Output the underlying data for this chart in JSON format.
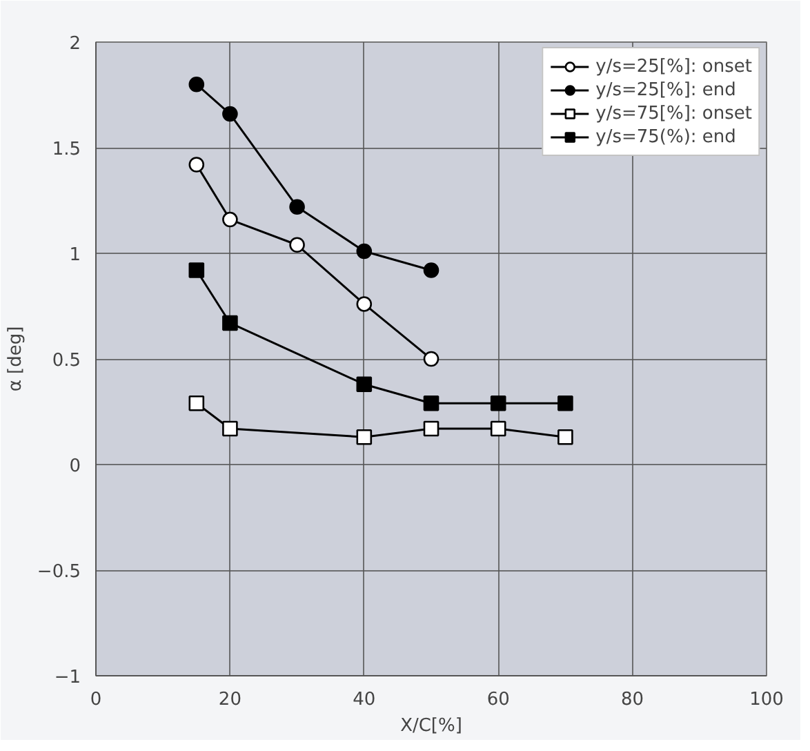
{
  "chart_data": {
    "type": "line",
    "xlabel": "X/C[%]",
    "ylabel": "α [deg]",
    "xlim": [
      0,
      100
    ],
    "xticks": [
      0,
      20,
      40,
      60,
      80,
      100
    ],
    "ylim": [
      -1,
      2
    ],
    "yticks": [
      -1,
      -0.5,
      0,
      0.5,
      1,
      1.5,
      2
    ],
    "grid": true,
    "legend": "top right",
    "line_style": "solid",
    "series": [
      {
        "name": "y/s=25[%]: onset",
        "color": "#000000",
        "colors": [
          "#ffffff",
          "#ffffff",
          "#ffffff",
          "#ffffff",
          "#ffffff"
        ],
        "marker": "circle",
        "x": [
          15,
          20,
          30,
          40,
          50
        ],
        "values": [
          1.42,
          1.16,
          1.04,
          0.76,
          0.5
        ]
      },
      {
        "name": "y/s=25[%]: end",
        "color": "#000000",
        "colors": [
          "#000000",
          "#000000",
          "#000000",
          "#000000",
          "#000000"
        ],
        "marker": "circle",
        "x": [
          15,
          20,
          30,
          40,
          50
        ],
        "values": [
          1.8,
          1.66,
          1.22,
          1.01,
          0.92
        ]
      },
      {
        "name": "y/s=75[%]: onset",
        "color": "#000000",
        "colors": [
          "#ffffff",
          "#ffffff",
          "#ffffff",
          "#ffffff",
          "#ffffff",
          "#ffffff"
        ],
        "marker": "square",
        "x": [
          15,
          20,
          40,
          50,
          60,
          70
        ],
        "values": [
          0.29,
          0.17,
          0.13,
          0.17,
          0.17,
          0.13
        ]
      },
      {
        "name": "y/s=75(%): end",
        "color": "#000000",
        "colors": [
          "#000000",
          "#000000",
          "#000000",
          "#000000",
          "#000000",
          "#000000"
        ],
        "marker": "square",
        "x": [
          15,
          20,
          40,
          50,
          60,
          70
        ],
        "values": [
          0.92,
          0.67,
          0.38,
          0.29,
          0.29,
          0.29
        ]
      }
    ]
  }
}
